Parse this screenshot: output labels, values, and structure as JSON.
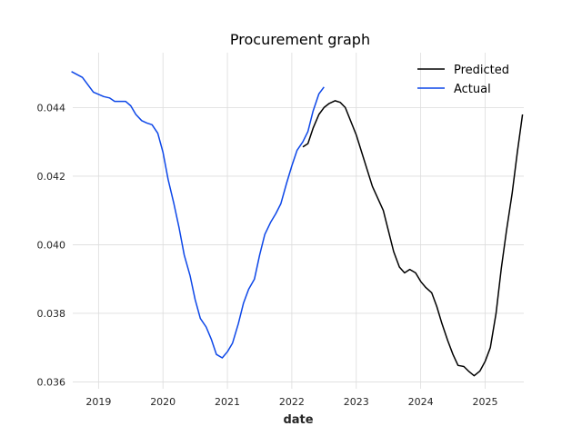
{
  "chart_data": {
    "type": "line",
    "title": "Procurement graph",
    "xlabel": "date",
    "ylabel": "",
    "xlim": [
      2018.6,
      2025.6
    ],
    "ylim": [
      0.0358,
      0.0456
    ],
    "x_ticks": [
      2019,
      2020,
      2021,
      2022,
      2023,
      2024,
      2025
    ],
    "x_tick_labels": [
      "2019",
      "2020",
      "2021",
      "2022",
      "2023",
      "2024",
      "2025"
    ],
    "y_ticks": [
      0.036,
      0.038,
      0.04,
      0.042,
      0.044
    ],
    "y_tick_labels": [
      "0.036",
      "0.038",
      "0.040",
      "0.042",
      "0.044"
    ],
    "grid": true,
    "legend_position": "top-right",
    "series": [
      {
        "name": "Predicted",
        "color": "#000000",
        "points": [
          [
            2022.17,
            0.04285
          ],
          [
            2022.25,
            0.04295
          ],
          [
            2022.33,
            0.0434
          ],
          [
            2022.42,
            0.0438
          ],
          [
            2022.5,
            0.044
          ],
          [
            2022.58,
            0.04412
          ],
          [
            2022.67,
            0.0442
          ],
          [
            2022.75,
            0.04415
          ],
          [
            2022.83,
            0.044
          ],
          [
            2023.0,
            0.0432
          ],
          [
            2023.25,
            0.0417
          ],
          [
            2023.42,
            0.041
          ],
          [
            2023.58,
            0.0398
          ],
          [
            2023.67,
            0.03935
          ],
          [
            2023.75,
            0.03918
          ],
          [
            2023.83,
            0.03928
          ],
          [
            2023.92,
            0.03918
          ],
          [
            2024.0,
            0.03893
          ],
          [
            2024.08,
            0.03875
          ],
          [
            2024.17,
            0.0386
          ],
          [
            2024.25,
            0.0382
          ],
          [
            2024.33,
            0.0377
          ],
          [
            2024.42,
            0.0372
          ],
          [
            2024.5,
            0.0368
          ],
          [
            2024.58,
            0.03648
          ],
          [
            2024.67,
            0.03645
          ],
          [
            2024.75,
            0.0363
          ],
          [
            2024.83,
            0.03618
          ],
          [
            2024.92,
            0.03632
          ],
          [
            2025.0,
            0.0366
          ],
          [
            2025.08,
            0.037
          ],
          [
            2025.17,
            0.038
          ],
          [
            2025.25,
            0.0393
          ],
          [
            2025.33,
            0.0404
          ],
          [
            2025.42,
            0.0415
          ],
          [
            2025.5,
            0.0427
          ],
          [
            2025.58,
            0.0438
          ]
        ]
      },
      {
        "name": "Actual",
        "color": "#0d47e8",
        "points": [
          [
            2018.58,
            0.04505
          ],
          [
            2018.75,
            0.04488
          ],
          [
            2018.92,
            0.04445
          ],
          [
            2019.08,
            0.04432
          ],
          [
            2019.17,
            0.04428
          ],
          [
            2019.25,
            0.04418
          ],
          [
            2019.42,
            0.04418
          ],
          [
            2019.5,
            0.04405
          ],
          [
            2019.58,
            0.0438
          ],
          [
            2019.67,
            0.04362
          ],
          [
            2019.75,
            0.04355
          ],
          [
            2019.83,
            0.0435
          ],
          [
            2019.92,
            0.04325
          ],
          [
            2020.0,
            0.0427
          ],
          [
            2020.08,
            0.0419
          ],
          [
            2020.17,
            0.0412
          ],
          [
            2020.25,
            0.0405
          ],
          [
            2020.33,
            0.0397
          ],
          [
            2020.42,
            0.0391
          ],
          [
            2020.5,
            0.0384
          ],
          [
            2020.58,
            0.03785
          ],
          [
            2020.67,
            0.0376
          ],
          [
            2020.75,
            0.03725
          ],
          [
            2020.83,
            0.0368
          ],
          [
            2020.92,
            0.0367
          ],
          [
            2021.0,
            0.03688
          ],
          [
            2021.08,
            0.03713
          ],
          [
            2021.17,
            0.0377
          ],
          [
            2021.25,
            0.0383
          ],
          [
            2021.33,
            0.0387
          ],
          [
            2021.42,
            0.039
          ],
          [
            2021.5,
            0.0397
          ],
          [
            2021.58,
            0.0403
          ],
          [
            2021.67,
            0.04065
          ],
          [
            2021.75,
            0.0409
          ],
          [
            2021.83,
            0.0412
          ],
          [
            2021.92,
            0.0418
          ],
          [
            2022.0,
            0.0423
          ],
          [
            2022.08,
            0.04275
          ],
          [
            2022.17,
            0.043
          ],
          [
            2022.25,
            0.0433
          ],
          [
            2022.33,
            0.0439
          ],
          [
            2022.42,
            0.0444
          ],
          [
            2022.5,
            0.0446
          ]
        ]
      }
    ]
  }
}
